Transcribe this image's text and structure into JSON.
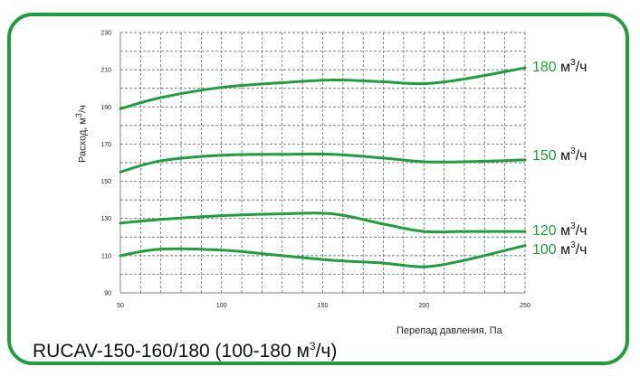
{
  "chart_data": {
    "type": "line",
    "title": "RUCAV-150-160/180 (100-180 м³/ч)",
    "xlabel": "Перепад давления, Па",
    "ylabel": "Расход, м³/ч",
    "xlim": [
      50,
      250
    ],
    "ylim": [
      90,
      230
    ],
    "xticks": [
      "50",
      "100",
      "150",
      "200",
      "250"
    ],
    "yticks": [
      "90",
      "110",
      "130",
      "150",
      "170",
      "190",
      "210",
      "230"
    ],
    "grid": true,
    "x": [
      50,
      70,
      100,
      130,
      155,
      180,
      200,
      220,
      250
    ],
    "series": [
      {
        "name": "180 м³/ч",
        "label_value": "180",
        "label_unit": "м³/ч",
        "color": "#1f9d3f",
        "values": [
          189,
          195,
          200.5,
          203,
          204.5,
          203.5,
          202.5,
          205,
          211
        ]
      },
      {
        "name": "150 м³/ч",
        "label_value": "150",
        "label_unit": "м³/ч",
        "color": "#1f9d3f",
        "values": [
          155,
          161,
          164,
          164.5,
          164.5,
          162.5,
          160.5,
          160.5,
          161.5
        ]
      },
      {
        "name": "120 м³/ч",
        "label_value": "120",
        "label_unit": "м³/ч",
        "color": "#1f9d3f",
        "values": [
          127.5,
          129.5,
          131.5,
          132.5,
          132.5,
          127,
          123,
          123,
          123
        ]
      },
      {
        "name": "100 м³/ч",
        "label_value": "100",
        "label_unit": "м³/ч",
        "color": "#1f9d3f",
        "values": [
          110,
          113.5,
          113,
          110,
          107.5,
          106,
          104,
          107.5,
          115.5
        ]
      }
    ]
  },
  "ylabel_parts": {
    "main": "Расход, м",
    "sup": "3",
    "tail": "/ч"
  },
  "title_parts": {
    "main": "RUCAV-150-160/180 (100-180 м",
    "sup": "3",
    "tail": "/ч)"
  },
  "labels": {
    "s180": {
      "val": "180",
      "main": " м",
      "sup": "3",
      "tail": "/ч"
    },
    "s150": {
      "val": "150",
      "main": " м",
      "sup": "3",
      "tail": "/ч"
    },
    "s120": {
      "val": "120",
      "main": " м",
      "sup": "3",
      "tail": "/ч"
    },
    "s100": {
      "val": "100",
      "main": " м",
      "sup": "3",
      "tail": "/ч"
    }
  }
}
